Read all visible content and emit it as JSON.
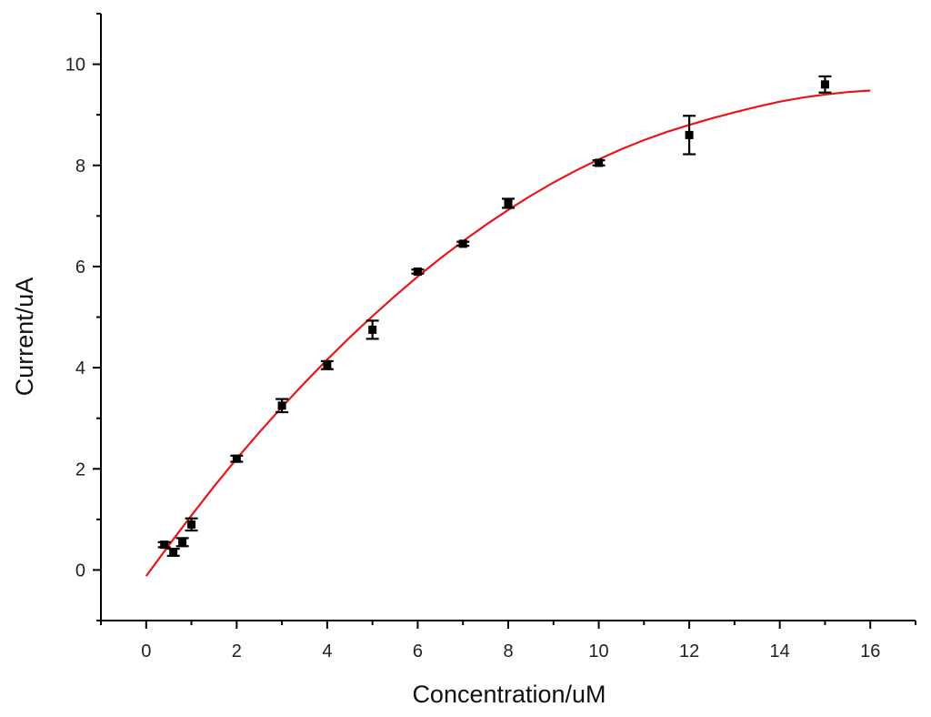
{
  "chart_data": {
    "type": "scatter",
    "xlabel": "Concentration/uM",
    "ylabel": "Current/uA",
    "xlim": [
      -1,
      17
    ],
    "ylim": [
      -1,
      11
    ],
    "xticks": [
      0,
      2,
      4,
      6,
      8,
      10,
      12,
      14,
      16
    ],
    "yticks": [
      0,
      2,
      4,
      6,
      8,
      10
    ],
    "series": [
      {
        "marker": "square",
        "color": "#000000",
        "points": [
          {
            "x": 0.4,
            "y": 0.5,
            "err": 0.05
          },
          {
            "x": 0.6,
            "y": 0.35,
            "err": 0.07
          },
          {
            "x": 0.8,
            "y": 0.55,
            "err": 0.08
          },
          {
            "x": 1.0,
            "y": 0.9,
            "err": 0.12
          },
          {
            "x": 2.0,
            "y": 2.2,
            "err": 0.06
          },
          {
            "x": 3.0,
            "y": 3.25,
            "err": 0.13
          },
          {
            "x": 4.0,
            "y": 4.05,
            "err": 0.08
          },
          {
            "x": 5.0,
            "y": 4.75,
            "err": 0.18
          },
          {
            "x": 6.0,
            "y": 5.9,
            "err": 0.04
          },
          {
            "x": 7.0,
            "y": 6.45,
            "err": 0.04
          },
          {
            "x": 8.0,
            "y": 7.25,
            "err": 0.09
          },
          {
            "x": 10.0,
            "y": 8.05,
            "err": 0.05
          },
          {
            "x": 12.0,
            "y": 8.6,
            "err": 0.38
          },
          {
            "x": 15.0,
            "y": 9.6,
            "err": 0.16
          }
        ]
      }
    ],
    "fit_curve": {
      "color": "#e8161a",
      "x": [
        0,
        0.5,
        1,
        1.5,
        2,
        2.5,
        3,
        3.5,
        4,
        4.5,
        5,
        5.5,
        6,
        6.5,
        7,
        7.5,
        8,
        8.5,
        9,
        9.5,
        10,
        10.5,
        11,
        11.5,
        12,
        12.5,
        13,
        13.5,
        14,
        14.5,
        15,
        15.5,
        16
      ],
      "y": [
        -0.12,
        0.49,
        1.08,
        1.65,
        2.2,
        2.72,
        3.22,
        3.7,
        4.16,
        4.6,
        5.02,
        5.42,
        5.8,
        6.16,
        6.5,
        6.82,
        7.12,
        7.4,
        7.66,
        7.9,
        8.12,
        8.32,
        8.5,
        8.66,
        8.8,
        8.93,
        9.05,
        9.16,
        9.26,
        9.34,
        9.4,
        9.45,
        9.48
      ]
    }
  }
}
